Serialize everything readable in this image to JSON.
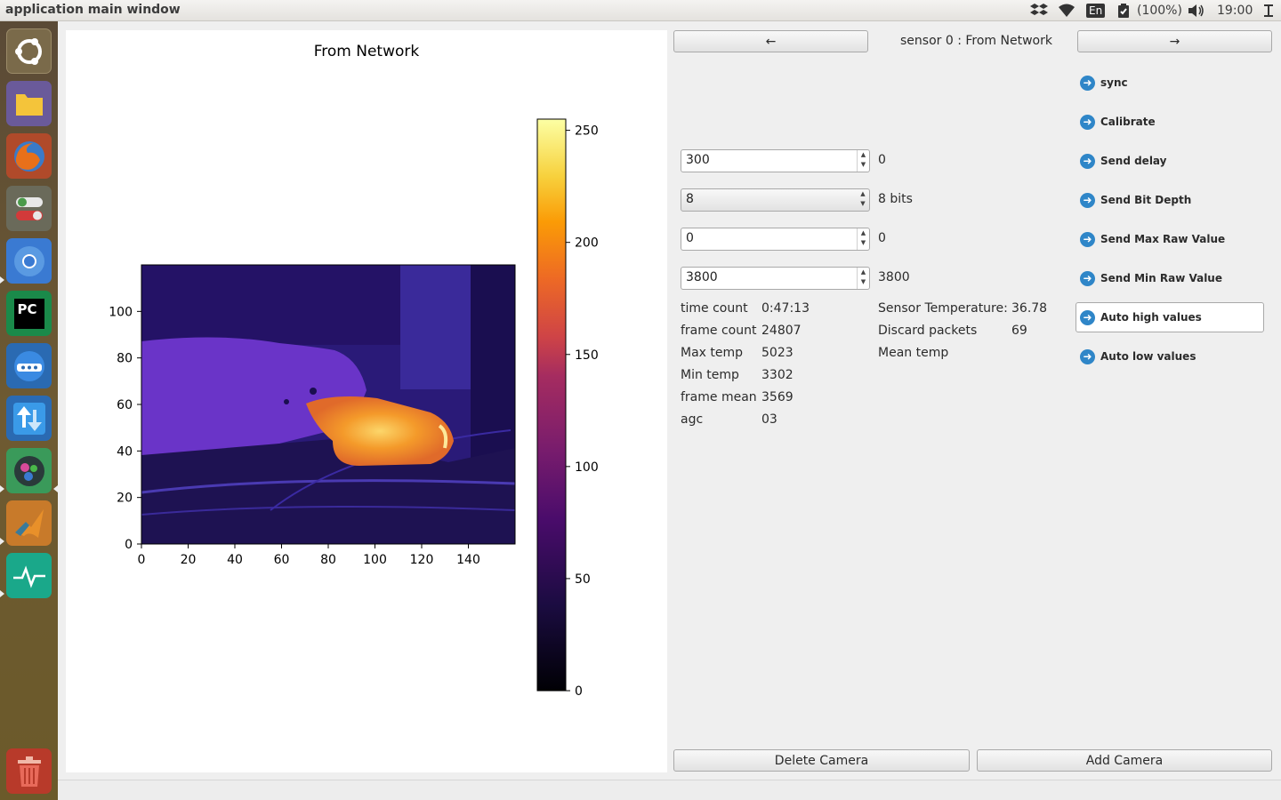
{
  "window": {
    "title": "application main window"
  },
  "tray": {
    "keyboard": "En",
    "battery": "(100%)",
    "clock": "19:00"
  },
  "launcher": {
    "items": [
      {
        "icon": "ubuntu-dash-icon"
      },
      {
        "icon": "files-icon"
      },
      {
        "icon": "firefox-icon"
      },
      {
        "icon": "settings-toggle-icon"
      },
      {
        "icon": "chromium-icon"
      },
      {
        "icon": "pycharm-icon"
      },
      {
        "icon": "terminal-dock-icon"
      },
      {
        "icon": "software-updater-icon"
      },
      {
        "icon": "system-tools-icon"
      },
      {
        "icon": "matlab-icon"
      },
      {
        "icon": "system-monitor-icon"
      },
      {
        "icon": "trash-icon"
      }
    ],
    "pycharm_text": "PC"
  },
  "plot": {
    "title": "From Network",
    "colorbar_ticks": [
      "0",
      "50",
      "100",
      "150",
      "200",
      "250"
    ],
    "y_ticks": [
      "0",
      "20",
      "40",
      "60",
      "80",
      "100"
    ],
    "x_ticks": [
      "0",
      "20",
      "40",
      "60",
      "80",
      "100",
      "120",
      "140"
    ]
  },
  "chart_data": {
    "type": "heatmap",
    "title": "From Network",
    "xlim": [
      0,
      160
    ],
    "ylim": [
      0,
      120
    ],
    "colorbar_range": [
      0,
      255
    ],
    "colormap": "inferno-like (black-purple-orange-yellow-white)"
  },
  "nav": {
    "prev_label": "←",
    "next_label": "→",
    "sensor_label": "sensor 0 : From Network"
  },
  "controls": {
    "delay": {
      "value": "300",
      "readout": "0"
    },
    "bit_depth": {
      "value": "8",
      "readout": "8 bits"
    },
    "max_raw": {
      "value": "0",
      "readout": "0"
    },
    "min_raw": {
      "value": "3800",
      "readout": "3800"
    }
  },
  "stats": {
    "left": [
      {
        "label": "time count",
        "value": "0:47:13"
      },
      {
        "label": "frame count",
        "value": "24807"
      },
      {
        "label": "Max temp",
        "value": "5023"
      },
      {
        "label": "Min temp",
        "value": "3302"
      },
      {
        "label": "frame mean",
        "value": "3569"
      },
      {
        "label": "agc",
        "value": "03"
      }
    ],
    "right": [
      {
        "label": "Sensor Temperature:",
        "value": "36.78"
      },
      {
        "label": "Discard packets",
        "value": "69"
      },
      {
        "label": "Mean temp",
        "value": ""
      }
    ]
  },
  "commands": {
    "sync": "sync",
    "calibrate": "Calibrate",
    "send_delay": "Send delay",
    "send_bit_depth": "Send Bit Depth",
    "send_max_raw": "Send Max Raw Value",
    "send_min_raw": "Send Min Raw Value",
    "auto_high": "Auto high values",
    "auto_low": "Auto low values",
    "icon": "arrow-right-circle-icon"
  },
  "footer": {
    "delete_label": "Delete Camera",
    "add_label": "Add Camera"
  },
  "colors": {
    "accent": "#2f86c8",
    "launcher_bg": "#6b5a32"
  }
}
